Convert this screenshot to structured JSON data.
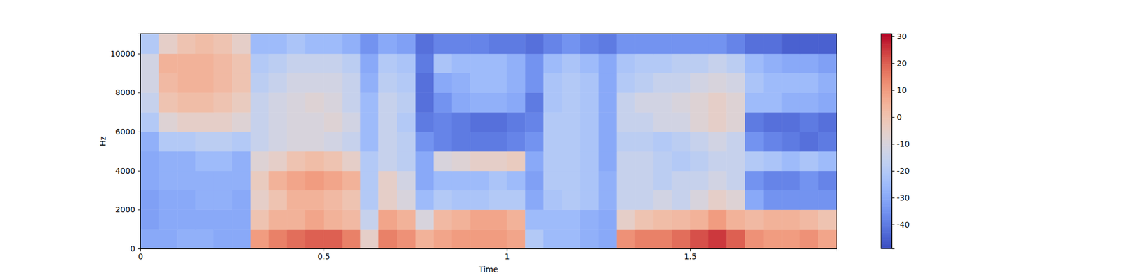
{
  "chart_data": {
    "type": "heatmap",
    "xlabel": "Time",
    "ylabel": "Hz",
    "xlim": [
      0,
      1.9
    ],
    "ylim": [
      0,
      11025
    ],
    "xticks": [
      0,
      0.5,
      1,
      1.5
    ],
    "yticks": [
      0,
      2000,
      4000,
      6000,
      8000,
      10000
    ],
    "x_bins": [
      0,
      0.05,
      0.1,
      0.15,
      0.2,
      0.25,
      0.3,
      0.35,
      0.4,
      0.45,
      0.5,
      0.55,
      0.6,
      0.65,
      0.7,
      0.75,
      0.8,
      0.85,
      0.9,
      0.95,
      1,
      1.05,
      1.1,
      1.15,
      1.2,
      1.25,
      1.3,
      1.35,
      1.4,
      1.45,
      1.5,
      1.55,
      1.6,
      1.65,
      1.7,
      1.75,
      1.8,
      1.85,
      1.9
    ],
    "y_bins": [
      0,
      1000,
      2000,
      3000,
      4000,
      5000,
      6000,
      7000,
      8000,
      9000,
      10000,
      11025
    ],
    "z": [
      [
        -30,
        -30,
        -28,
        -28,
        -30,
        -30,
        10,
        15,
        18,
        20,
        20,
        15,
        -5,
        15,
        12,
        5,
        8,
        10,
        10,
        10,
        8,
        -20,
        -25,
        -25,
        -28,
        -30,
        12,
        15,
        15,
        18,
        22,
        25,
        20,
        12,
        10,
        10,
        12,
        8
      ],
      [
        -32,
        -30,
        -30,
        -30,
        -30,
        -30,
        0,
        5,
        5,
        8,
        5,
        3,
        -15,
        8,
        5,
        -10,
        3,
        5,
        8,
        8,
        5,
        -25,
        -25,
        -25,
        -28,
        -30,
        -5,
        0,
        2,
        3,
        5,
        10,
        5,
        3,
        5,
        5,
        3,
        0
      ],
      [
        -32,
        -30,
        -30,
        -28,
        -28,
        -30,
        -5,
        0,
        5,
        5,
        3,
        0,
        -20,
        -5,
        -10,
        -25,
        -20,
        -22,
        -22,
        -20,
        -20,
        -30,
        -22,
        -20,
        -22,
        -28,
        -15,
        -15,
        -12,
        -15,
        -10,
        -5,
        -8,
        -30,
        -35,
        -35,
        -35,
        -35
      ],
      [
        -30,
        -28,
        -28,
        -28,
        -28,
        -28,
        -3,
        5,
        8,
        10,
        8,
        5,
        -20,
        -5,
        -12,
        -30,
        -25,
        -25,
        -25,
        -22,
        -25,
        -32,
        -20,
        -20,
        -22,
        -28,
        -15,
        -15,
        -18,
        -15,
        -15,
        -12,
        -15,
        -35,
        -38,
        -38,
        -35,
        -38
      ],
      [
        -30,
        -28,
        -28,
        -25,
        -25,
        -28,
        -8,
        -5,
        0,
        2,
        0,
        -5,
        -20,
        -15,
        -18,
        -30,
        -10,
        -8,
        -5,
        -5,
        -3,
        -30,
        -20,
        -20,
        -22,
        -30,
        -15,
        -15,
        -18,
        -20,
        -18,
        -15,
        -15,
        -20,
        -22,
        -25,
        -22,
        -25
      ],
      [
        -28,
        -20,
        -20,
        -18,
        -18,
        -20,
        -15,
        -12,
        -10,
        -10,
        -12,
        -15,
        -25,
        -15,
        -18,
        -35,
        -38,
        -40,
        -40,
        -40,
        -38,
        -35,
        -20,
        -20,
        -22,
        -30,
        -18,
        -18,
        -20,
        -18,
        -15,
        -12,
        -15,
        -35,
        -38,
        -40,
        -42,
        -40
      ],
      [
        -20,
        -8,
        -5,
        -5,
        -5,
        -8,
        -15,
        -12,
        -10,
        -10,
        -8,
        -12,
        -25,
        -15,
        -20,
        -40,
        -38,
        -40,
        -42,
        -42,
        -40,
        -38,
        -20,
        -20,
        -22,
        -30,
        -15,
        -15,
        -12,
        -12,
        -8,
        -5,
        -8,
        -40,
        -42,
        -42,
        -40,
        -42
      ],
      [
        -15,
        0,
        2,
        2,
        0,
        -3,
        -15,
        -12,
        -10,
        -8,
        -10,
        -15,
        -25,
        -15,
        -18,
        -42,
        -35,
        -30,
        -28,
        -28,
        -30,
        -40,
        -22,
        -20,
        -22,
        -30,
        -15,
        -12,
        -12,
        -10,
        -8,
        -5,
        -8,
        -25,
        -25,
        -28,
        -28,
        -30
      ],
      [
        -12,
        3,
        5,
        5,
        3,
        0,
        -18,
        -15,
        -12,
        -12,
        -12,
        -15,
        -28,
        -18,
        -20,
        -42,
        -30,
        -28,
        -25,
        -25,
        -28,
        -35,
        -22,
        -20,
        -22,
        -30,
        -20,
        -18,
        -15,
        -15,
        -12,
        -10,
        -12,
        -22,
        -25,
        -25,
        -25,
        -28
      ],
      [
        -12,
        5,
        5,
        5,
        3,
        0,
        -20,
        -18,
        -15,
        -15,
        -15,
        -18,
        -30,
        -20,
        -22,
        -40,
        -22,
        -25,
        -25,
        -25,
        -28,
        -35,
        -25,
        -22,
        -25,
        -30,
        -22,
        -20,
        -20,
        -18,
        -18,
        -15,
        -18,
        -25,
        -28,
        -30,
        -30,
        -32
      ],
      [
        -20,
        -5,
        0,
        2,
        0,
        -5,
        -25,
        -25,
        -22,
        -25,
        -25,
        -28,
        -35,
        -30,
        -32,
        -42,
        -38,
        -38,
        -38,
        -40,
        -40,
        -42,
        -38,
        -35,
        -38,
        -40,
        -35,
        -35,
        -35,
        -35,
        -35,
        -35,
        -38,
        -42,
        -42,
        -45,
        -45,
        -45
      ]
    ],
    "colorbar": {
      "range": [
        -49,
        31
      ],
      "ticks": [
        -40,
        -30,
        -20,
        -10,
        0,
        10,
        20,
        30
      ]
    }
  }
}
